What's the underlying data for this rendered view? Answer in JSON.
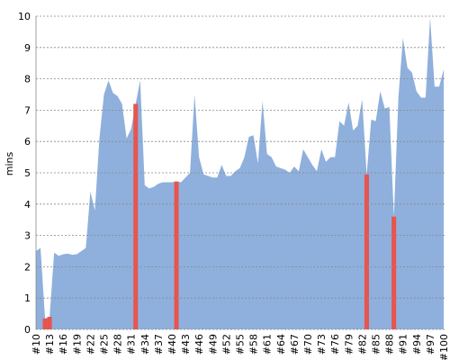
{
  "chart_data": {
    "type": "area",
    "y_label": "mins",
    "categories": [
      "#10",
      null,
      null,
      "#13",
      null,
      null,
      "#16",
      null,
      null,
      "#19",
      null,
      null,
      "#22",
      null,
      null,
      "#25",
      null,
      null,
      "#28",
      null,
      null,
      "#31",
      null,
      null,
      "#34",
      null,
      null,
      "#37",
      null,
      null,
      "#40",
      null,
      null,
      "#43",
      null,
      null,
      "#46",
      null,
      null,
      "#49",
      null,
      null,
      "#52",
      null,
      null,
      "#55",
      null,
      null,
      "#58",
      null,
      null,
      "#61",
      null,
      null,
      "#64",
      null,
      null,
      "#67",
      null,
      null,
      "#70",
      null,
      null,
      "#73",
      null,
      null,
      "#76",
      null,
      null,
      "#79",
      null,
      null,
      "#82",
      null,
      null,
      "#85",
      null,
      null,
      "#88",
      null,
      null,
      "#91",
      null,
      null,
      "#94",
      null,
      null,
      "#97",
      null,
      null,
      "#100"
    ],
    "series": [
      {
        "color": "#8fb0dc",
        "values": [
          2.5,
          2.6,
          0.35,
          0.4,
          2.45,
          2.35,
          2.4,
          2.42,
          2.38,
          2.4,
          2.5,
          2.6,
          4.4,
          3.8,
          6.1,
          7.5,
          7.95,
          7.55,
          7.45,
          7.2,
          6.1,
          6.4,
          7.2,
          7.95,
          4.6,
          4.5,
          4.55,
          4.65,
          4.7,
          4.7,
          4.7,
          4.72,
          4.7,
          4.85,
          5.0,
          7.5,
          5.5,
          4.95,
          4.9,
          4.85,
          4.85,
          5.25,
          4.9,
          4.9,
          5.05,
          5.15,
          5.5,
          6.15,
          6.2,
          5.3,
          7.3,
          5.6,
          5.5,
          5.2,
          5.15,
          5.1,
          5.0,
          5.2,
          5.05,
          5.75,
          5.5,
          5.25,
          5.05,
          5.75,
          5.35,
          5.5,
          5.5,
          6.65,
          6.5,
          7.25,
          6.35,
          6.5,
          7.35,
          4.95,
          6.7,
          6.65,
          7.6,
          7.05,
          7.1,
          3.6,
          7.4,
          9.3,
          8.35,
          8.2,
          7.6,
          7.4,
          7.4,
          9.95,
          7.75,
          7.75,
          8.3
        ]
      },
      {
        "color": "#e8544e",
        "values": [
          null,
          null,
          0.35,
          0.4,
          null,
          null,
          null,
          null,
          null,
          null,
          null,
          null,
          null,
          null,
          null,
          null,
          null,
          null,
          null,
          null,
          null,
          null,
          7.2,
          null,
          null,
          null,
          null,
          null,
          null,
          null,
          null,
          4.72,
          null,
          null,
          null,
          null,
          null,
          null,
          null,
          null,
          null,
          null,
          null,
          null,
          null,
          null,
          null,
          null,
          null,
          null,
          null,
          null,
          null,
          null,
          null,
          null,
          null,
          null,
          null,
          null,
          null,
          null,
          null,
          null,
          null,
          null,
          null,
          null,
          null,
          null,
          null,
          null,
          null,
          4.95,
          null,
          null,
          null,
          null,
          null,
          3.6,
          null,
          null,
          null,
          null,
          null,
          null,
          null,
          null,
          null,
          null,
          null
        ]
      }
    ],
    "ylim": [
      0,
      10
    ],
    "yticks": [
      0,
      1,
      2,
      3,
      4,
      5,
      6,
      7,
      8,
      9,
      10
    ],
    "grid": true
  }
}
